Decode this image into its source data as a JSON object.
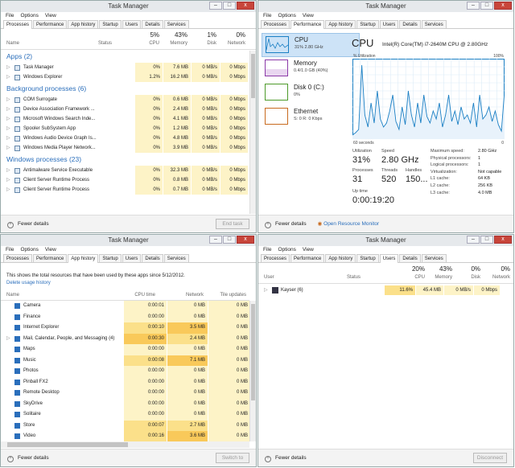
{
  "app": {
    "title": "Task Manager",
    "menu": [
      "File",
      "Options",
      "View"
    ],
    "tabs": [
      "Processes",
      "Performance",
      "App history",
      "Startup",
      "Users",
      "Details",
      "Services"
    ],
    "fewer": "Fewer details",
    "minimize": "–",
    "maximize": "□",
    "close": "x"
  },
  "proc": {
    "cols": {
      "name": "Name",
      "status": "Status",
      "cpu_pct": "5%",
      "cpu": "CPU",
      "mem_pct": "43%",
      "mem": "Memory",
      "disk_pct": "1%",
      "disk": "Disk",
      "net_pct": "0%",
      "net": "Network"
    },
    "groups": [
      {
        "title": "Apps (2)",
        "rows": [
          {
            "name": "Task Manager",
            "cpu": "0%",
            "mem": "7.6 MB",
            "disk": "0 MB/s",
            "net": "0 Mbps"
          },
          {
            "name": "Windows Explorer",
            "cpu": "1.2%",
            "mem": "16.2 MB",
            "disk": "0 MB/s",
            "net": "0 Mbps"
          }
        ]
      },
      {
        "title": "Background processes (6)",
        "rows": [
          {
            "name": "COM Surrogate",
            "cpu": "0%",
            "mem": "0.6 MB",
            "disk": "0 MB/s",
            "net": "0 Mbps"
          },
          {
            "name": "Device Association Framework ...",
            "cpu": "0%",
            "mem": "2.4 MB",
            "disk": "0 MB/s",
            "net": "0 Mbps"
          },
          {
            "name": "Microsoft Windows Search Inde...",
            "cpu": "0%",
            "mem": "4.1 MB",
            "disk": "0 MB/s",
            "net": "0 Mbps"
          },
          {
            "name": "Spooler SubSystem App",
            "cpu": "0%",
            "mem": "1.2 MB",
            "disk": "0 MB/s",
            "net": "0 Mbps"
          },
          {
            "name": "Windows Audio Device Graph Is...",
            "cpu": "0%",
            "mem": "4.8 MB",
            "disk": "0 MB/s",
            "net": "0 Mbps"
          },
          {
            "name": "Windows Media Player Network...",
            "cpu": "0%",
            "mem": "3.9 MB",
            "disk": "0 MB/s",
            "net": "0 Mbps"
          }
        ]
      },
      {
        "title": "Windows processes (23)",
        "rows": [
          {
            "name": "Antimalware Service Executable",
            "cpu": "0%",
            "mem": "32.3 MB",
            "disk": "0 MB/s",
            "net": "0 Mbps"
          },
          {
            "name": "Client Server Runtime Process",
            "cpu": "0%",
            "mem": "0.8 MB",
            "disk": "0 MB/s",
            "net": "0 Mbps"
          },
          {
            "name": "Client Server Runtime Process",
            "cpu": "0%",
            "mem": "0.7 MB",
            "disk": "0 MB/s",
            "net": "0 Mbps"
          }
        ]
      }
    ],
    "end": "End task"
  },
  "perf": {
    "items": [
      {
        "t": "CPU",
        "s": "31% 2.80 GHz"
      },
      {
        "t": "Memory",
        "s": "0.4/1.0 GB (40%)"
      },
      {
        "t": "Disk 0 (C:)",
        "s": "0%"
      },
      {
        "t": "Ethernet",
        "s": "S: 0 R: 0 Kbps"
      }
    ],
    "title": "CPU",
    "model": "Intel(R) Core(TM) i7-2640M CPU @ 2.80GHz",
    "util": "% Utilization",
    "max": "100%",
    "secs": "60 seconds",
    "zero": "0",
    "stats": [
      {
        "l": "Utilization",
        "v": "31%"
      },
      {
        "l": "Speed",
        "v": "2.80 GHz"
      },
      {
        "l": "Processes",
        "v": "31"
      },
      {
        "l": "Threads",
        "v": "520"
      },
      {
        "l": "Handles",
        "v": "150..."
      },
      {
        "l": "Up time",
        "v": "0:00:19:20"
      }
    ],
    "specs": [
      {
        "l": "Maximum speed:",
        "v": "2.80 GHz"
      },
      {
        "l": "Physical processors:",
        "v": "1"
      },
      {
        "l": "Logical processors:",
        "v": "1"
      },
      {
        "l": "Virtualization:",
        "v": "Not capable"
      },
      {
        "l": "L1 cache:",
        "v": "64 KB"
      },
      {
        "l": "L2 cache:",
        "v": "256 KB"
      },
      {
        "l": "L3 cache:",
        "v": "4.0 MB"
      }
    ],
    "monitor": "Open Resource Monitor",
    "cpu_history": [
      5,
      8,
      12,
      92,
      30,
      15,
      45,
      20,
      60,
      25,
      15,
      20,
      35,
      55,
      22,
      12,
      40,
      18,
      60,
      30,
      15,
      45,
      20,
      55,
      28,
      20,
      35,
      25,
      45,
      15,
      30,
      55,
      22,
      35,
      18,
      40,
      25,
      30,
      20,
      45,
      15,
      55,
      25,
      30,
      40,
      22,
      35,
      18,
      10,
      60
    ]
  },
  "app_history": {
    "desc": "This shows the total resources that have been used by these apps since 5/12/2012.",
    "del": "Delete usage history",
    "cols": [
      "Name",
      "CPU time",
      "Network",
      "Tile updates"
    ],
    "rows": [
      {
        "name": "Camera",
        "cpu": "0:00:01",
        "net": "0 MB",
        "tile": "0 MB"
      },
      {
        "name": "Finance",
        "cpu": "0:00:00",
        "net": "0 MB",
        "tile": "0 MB"
      },
      {
        "name": "Internet Explorer",
        "cpu": "0:00:10",
        "net": "3.5 MB",
        "tile": "0 MB"
      },
      {
        "name": "Mail, Calendar, People, and Messaging (4)",
        "cpu": "0:00:30",
        "net": "2.4 MB",
        "tile": "0 MB"
      },
      {
        "name": "Maps",
        "cpu": "0:00:00",
        "net": "0 MB",
        "tile": "0 MB"
      },
      {
        "name": "Music",
        "cpu": "0:00:08",
        "net": "7.1 MB",
        "tile": "0 MB"
      },
      {
        "name": "Photos",
        "cpu": "0:00:00",
        "net": "0 MB",
        "tile": "0 MB"
      },
      {
        "name": "Pinball FX2",
        "cpu": "0:00:00",
        "net": "0 MB",
        "tile": "0 MB"
      },
      {
        "name": "Remote Desktop",
        "cpu": "0:00:00",
        "net": "0 MB",
        "tile": "0 MB"
      },
      {
        "name": "SkyDrive",
        "cpu": "0:00:00",
        "net": "0 MB",
        "tile": "0 MB"
      },
      {
        "name": "Solitaire",
        "cpu": "0:00:00",
        "net": "0 MB",
        "tile": "0 MB"
      },
      {
        "name": "Store",
        "cpu": "0:00:07",
        "net": "2.7 MB",
        "tile": "0 MB"
      },
      {
        "name": "Video",
        "cpu": "0:00:16",
        "net": "3.6 MB",
        "tile": "0 MB"
      }
    ],
    "switch": "Switch to"
  },
  "users": {
    "cols": {
      "user": "User",
      "status": "Status",
      "cpu_pct": "20%",
      "cpu": "CPU",
      "mem_pct": "43%",
      "mem": "Memory",
      "disk_pct": "0%",
      "disk": "Disk",
      "net_pct": "0%",
      "net": "Network"
    },
    "row": {
      "name": "Kayser (6)",
      "cpu": "11.6%",
      "mem": "45.4 MB",
      "disk": "0 MB/s",
      "net": "0 Mbps"
    },
    "disc": "Disconnect"
  }
}
